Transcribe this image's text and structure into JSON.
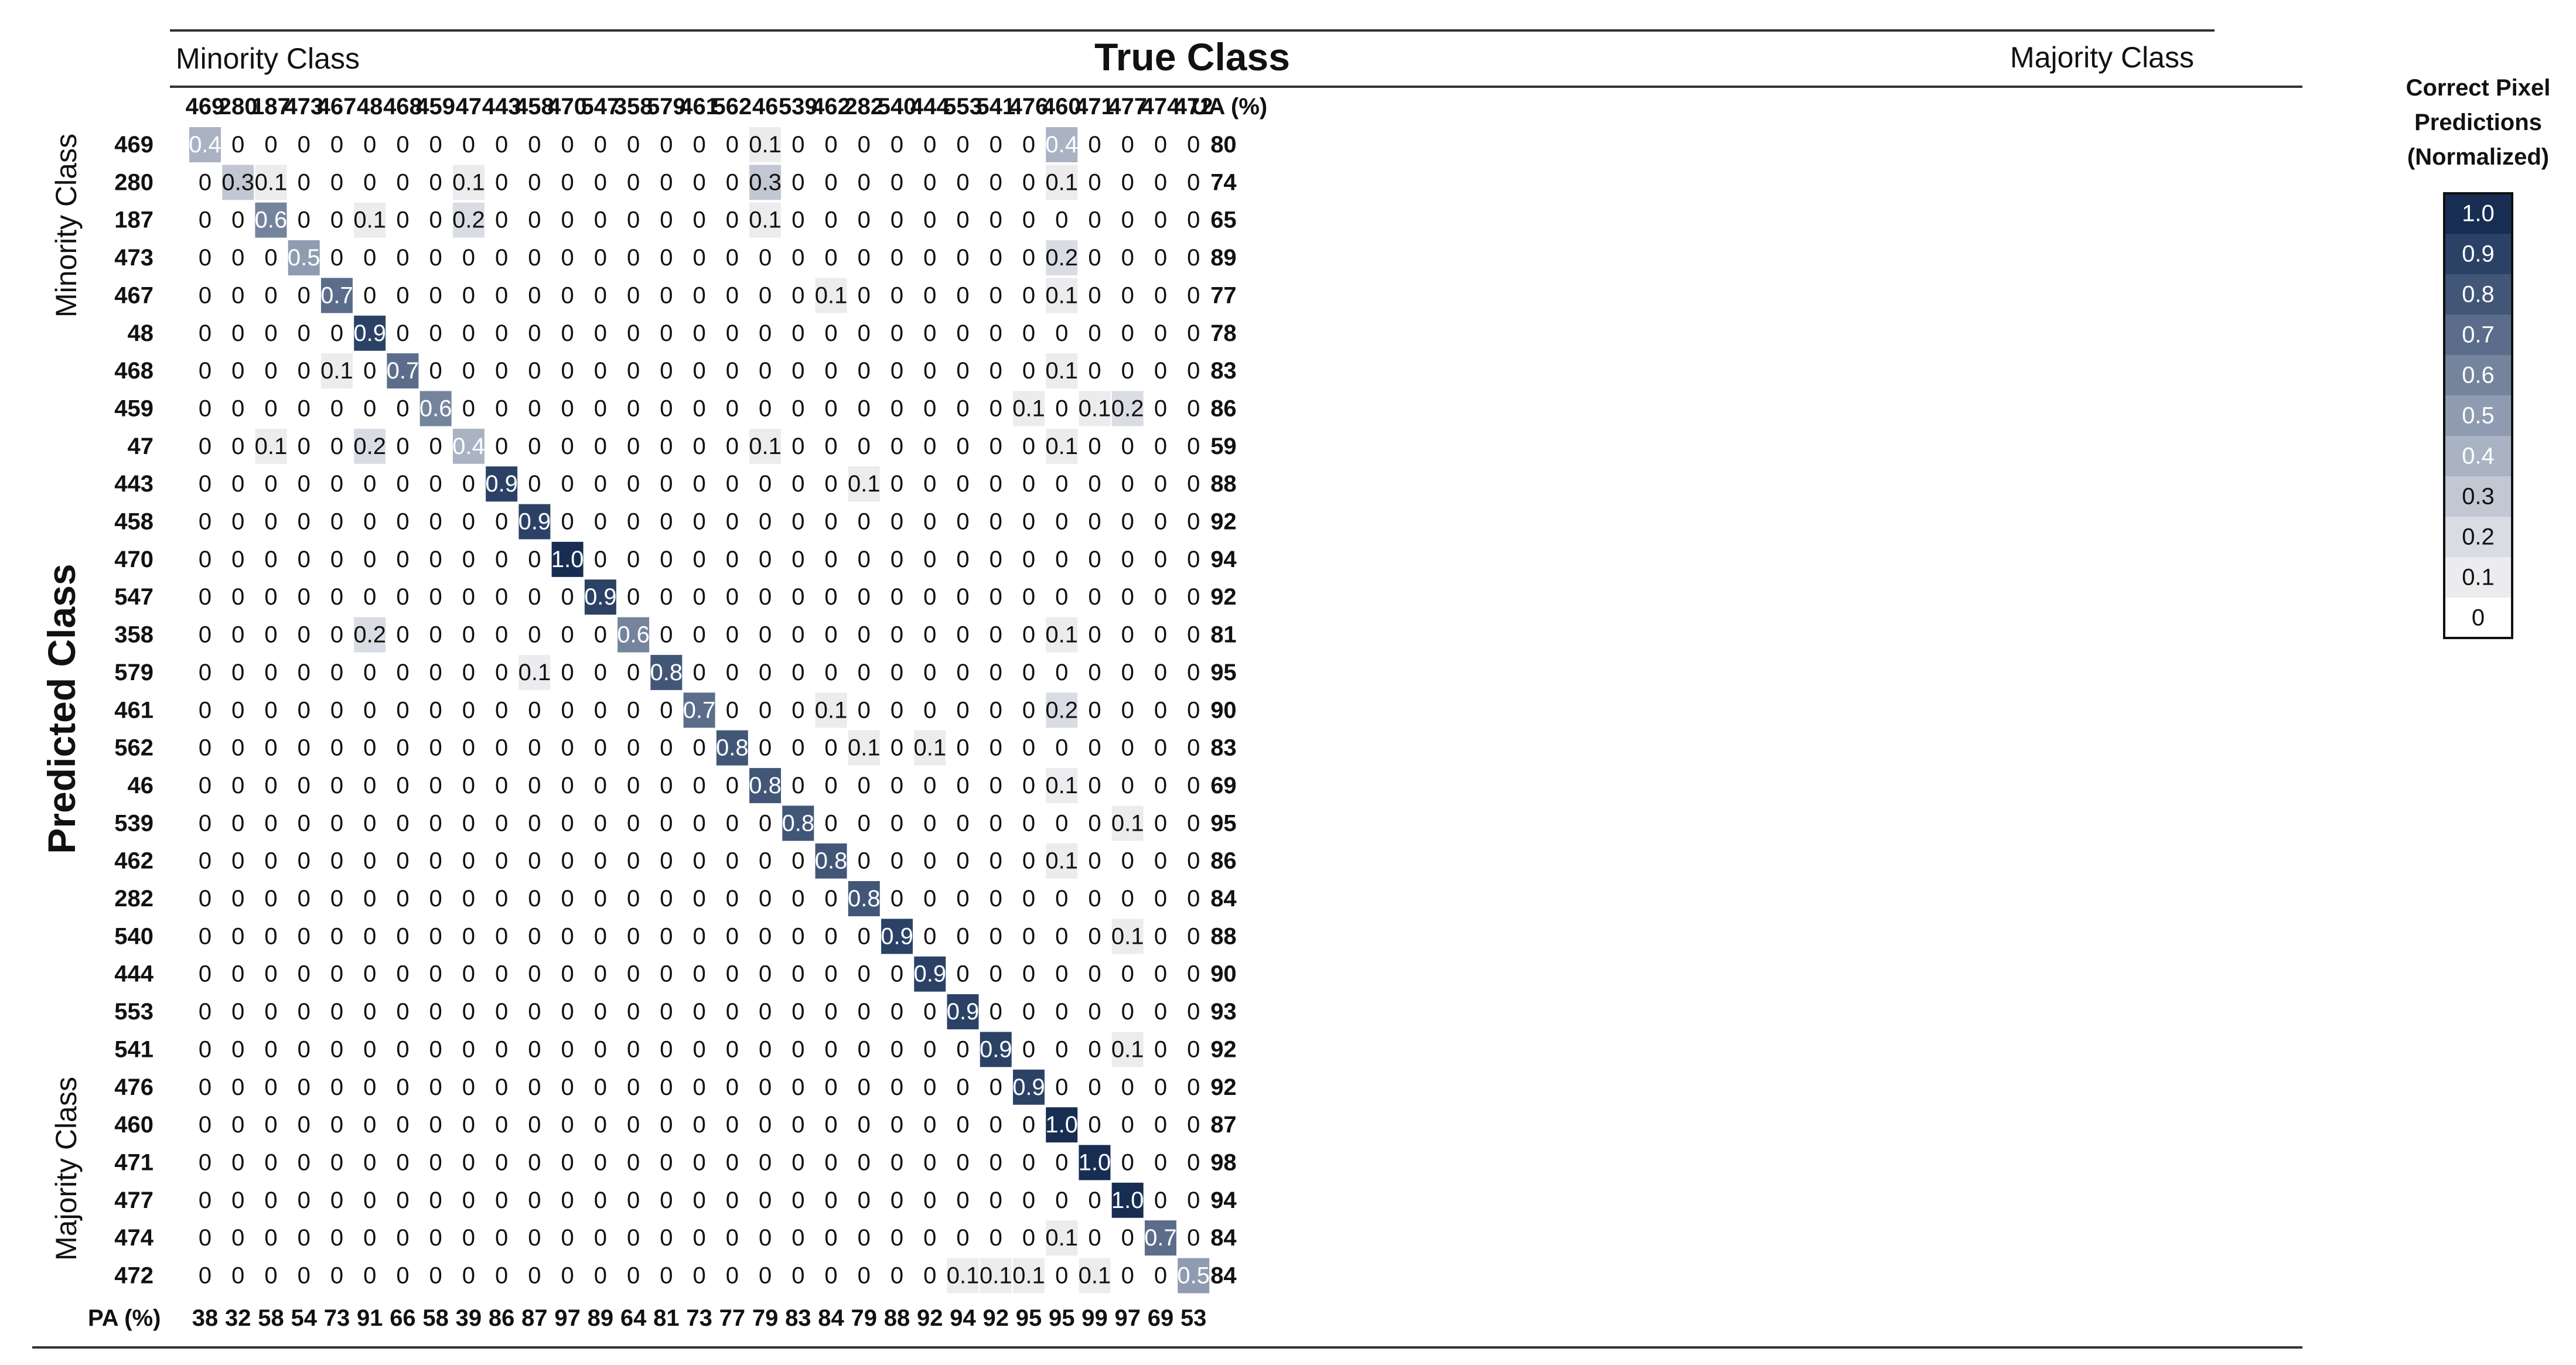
{
  "chart_data": {
    "type": "heatmap",
    "title": "True Class",
    "x_label": "True Class",
    "y_label": "Predicted Class",
    "top_left_note": "Minority Class",
    "top_right_note": "Majority Class",
    "left_top_note": "Minority Class",
    "left_bottom_note": "Majority Class",
    "ua_header": "UA (%)",
    "pa_header": "PA (%)",
    "classes": [
      "469",
      "280",
      "187",
      "473",
      "467",
      "48",
      "468",
      "459",
      "47",
      "443",
      "458",
      "470",
      "547",
      "358",
      "579",
      "461",
      "562",
      "46",
      "539",
      "462",
      "282",
      "540",
      "444",
      "553",
      "541",
      "476",
      "460",
      "471",
      "477",
      "474",
      "472"
    ],
    "cells": [
      [
        "0.4",
        "0",
        "0",
        "0",
        "0",
        "0",
        "0",
        "0",
        "0",
        "0",
        "0",
        "0",
        "0",
        "0",
        "0",
        "0",
        "0",
        "0.1",
        "0",
        "0",
        "0",
        "0",
        "0",
        "0",
        "0",
        "0",
        "0.4",
        "0",
        "0",
        "0",
        "0"
      ],
      [
        "0",
        "0.3",
        "0.1",
        "0",
        "0",
        "0",
        "0",
        "0",
        "0.1",
        "0",
        "0",
        "0",
        "0",
        "0",
        "0",
        "0",
        "0",
        "0.3",
        "0",
        "0",
        "0",
        "0",
        "0",
        "0",
        "0",
        "0",
        "0.1",
        "0",
        "0",
        "0",
        "0"
      ],
      [
        "0",
        "0",
        "0.6",
        "0",
        "0",
        "0.1",
        "0",
        "0",
        "0.2",
        "0",
        "0",
        "0",
        "0",
        "0",
        "0",
        "0",
        "0",
        "0.1",
        "0",
        "0",
        "0",
        "0",
        "0",
        "0",
        "0",
        "0",
        "0",
        "0",
        "0",
        "0",
        "0"
      ],
      [
        "0",
        "0",
        "0",
        "0.5",
        "0",
        "0",
        "0",
        "0",
        "0",
        "0",
        "0",
        "0",
        "0",
        "0",
        "0",
        "0",
        "0",
        "0",
        "0",
        "0",
        "0",
        "0",
        "0",
        "0",
        "0",
        "0",
        "0.2",
        "0",
        "0",
        "0",
        "0"
      ],
      [
        "0",
        "0",
        "0",
        "0",
        "0.7",
        "0",
        "0",
        "0",
        "0",
        "0",
        "0",
        "0",
        "0",
        "0",
        "0",
        "0",
        "0",
        "0",
        "0",
        "0.1",
        "0",
        "0",
        "0",
        "0",
        "0",
        "0",
        "0.1",
        "0",
        "0",
        "0",
        "0"
      ],
      [
        "0",
        "0",
        "0",
        "0",
        "0",
        "0.9",
        "0",
        "0",
        "0",
        "0",
        "0",
        "0",
        "0",
        "0",
        "0",
        "0",
        "0",
        "0",
        "0",
        "0",
        "0",
        "0",
        "0",
        "0",
        "0",
        "0",
        "0",
        "0",
        "0",
        "0",
        "0"
      ],
      [
        "0",
        "0",
        "0",
        "0",
        "0.1",
        "0",
        "0.7",
        "0",
        "0",
        "0",
        "0",
        "0",
        "0",
        "0",
        "0",
        "0",
        "0",
        "0",
        "0",
        "0",
        "0",
        "0",
        "0",
        "0",
        "0",
        "0",
        "0.1",
        "0",
        "0",
        "0",
        "0"
      ],
      [
        "0",
        "0",
        "0",
        "0",
        "0",
        "0",
        "0",
        "0.6",
        "0",
        "0",
        "0",
        "0",
        "0",
        "0",
        "0",
        "0",
        "0",
        "0",
        "0",
        "0",
        "0",
        "0",
        "0",
        "0",
        "0",
        "0.1",
        "0",
        "0.1",
        "0.2",
        "0",
        "0"
      ],
      [
        "0",
        "0",
        "0.1",
        "0",
        "0",
        "0.2",
        "0",
        "0",
        "0.4",
        "0",
        "0",
        "0",
        "0",
        "0",
        "0",
        "0",
        "0",
        "0.1",
        "0",
        "0",
        "0",
        "0",
        "0",
        "0",
        "0",
        "0",
        "0.1",
        "0",
        "0",
        "0",
        "0"
      ],
      [
        "0",
        "0",
        "0",
        "0",
        "0",
        "0",
        "0",
        "0",
        "0",
        "0.9",
        "0",
        "0",
        "0",
        "0",
        "0",
        "0",
        "0",
        "0",
        "0",
        "0",
        "0.1",
        "0",
        "0",
        "0",
        "0",
        "0",
        "0",
        "0",
        "0",
        "0",
        "0"
      ],
      [
        "0",
        "0",
        "0",
        "0",
        "0",
        "0",
        "0",
        "0",
        "0",
        "0",
        "0.9",
        "0",
        "0",
        "0",
        "0",
        "0",
        "0",
        "0",
        "0",
        "0",
        "0",
        "0",
        "0",
        "0",
        "0",
        "0",
        "0",
        "0",
        "0",
        "0",
        "0"
      ],
      [
        "0",
        "0",
        "0",
        "0",
        "0",
        "0",
        "0",
        "0",
        "0",
        "0",
        "0",
        "1.0",
        "0",
        "0",
        "0",
        "0",
        "0",
        "0",
        "0",
        "0",
        "0",
        "0",
        "0",
        "0",
        "0",
        "0",
        "0",
        "0",
        "0",
        "0",
        "0"
      ],
      [
        "0",
        "0",
        "0",
        "0",
        "0",
        "0",
        "0",
        "0",
        "0",
        "0",
        "0",
        "0",
        "0.9",
        "0",
        "0",
        "0",
        "0",
        "0",
        "0",
        "0",
        "0",
        "0",
        "0",
        "0",
        "0",
        "0",
        "0",
        "0",
        "0",
        "0",
        "0"
      ],
      [
        "0",
        "0",
        "0",
        "0",
        "0",
        "0.2",
        "0",
        "0",
        "0",
        "0",
        "0",
        "0",
        "0",
        "0.6",
        "0",
        "0",
        "0",
        "0",
        "0",
        "0",
        "0",
        "0",
        "0",
        "0",
        "0",
        "0",
        "0.1",
        "0",
        "0",
        "0",
        "0"
      ],
      [
        "0",
        "0",
        "0",
        "0",
        "0",
        "0",
        "0",
        "0",
        "0",
        "0",
        "0.1",
        "0",
        "0",
        "0",
        "0.8",
        "0",
        "0",
        "0",
        "0",
        "0",
        "0",
        "0",
        "0",
        "0",
        "0",
        "0",
        "0",
        "0",
        "0",
        "0",
        "0"
      ],
      [
        "0",
        "0",
        "0",
        "0",
        "0",
        "0",
        "0",
        "0",
        "0",
        "0",
        "0",
        "0",
        "0",
        "0",
        "0",
        "0.7",
        "0",
        "0",
        "0",
        "0.1",
        "0",
        "0",
        "0",
        "0",
        "0",
        "0",
        "0.2",
        "0",
        "0",
        "0",
        "0"
      ],
      [
        "0",
        "0",
        "0",
        "0",
        "0",
        "0",
        "0",
        "0",
        "0",
        "0",
        "0",
        "0",
        "0",
        "0",
        "0",
        "0",
        "0.8",
        "0",
        "0",
        "0",
        "0.1",
        "0",
        "0.1",
        "0",
        "0",
        "0",
        "0",
        "0",
        "0",
        "0",
        "0"
      ],
      [
        "0",
        "0",
        "0",
        "0",
        "0",
        "0",
        "0",
        "0",
        "0",
        "0",
        "0",
        "0",
        "0",
        "0",
        "0",
        "0",
        "0",
        "0.8",
        "0",
        "0",
        "0",
        "0",
        "0",
        "0",
        "0",
        "0",
        "0.1",
        "0",
        "0",
        "0",
        "0"
      ],
      [
        "0",
        "0",
        "0",
        "0",
        "0",
        "0",
        "0",
        "0",
        "0",
        "0",
        "0",
        "0",
        "0",
        "0",
        "0",
        "0",
        "0",
        "0",
        "0.8",
        "0",
        "0",
        "0",
        "0",
        "0",
        "0",
        "0",
        "0",
        "0",
        "0.1",
        "0",
        "0"
      ],
      [
        "0",
        "0",
        "0",
        "0",
        "0",
        "0",
        "0",
        "0",
        "0",
        "0",
        "0",
        "0",
        "0",
        "0",
        "0",
        "0",
        "0",
        "0",
        "0",
        "0.8",
        "0",
        "0",
        "0",
        "0",
        "0",
        "0",
        "0.1",
        "0",
        "0",
        "0",
        "0"
      ],
      [
        "0",
        "0",
        "0",
        "0",
        "0",
        "0",
        "0",
        "0",
        "0",
        "0",
        "0",
        "0",
        "0",
        "0",
        "0",
        "0",
        "0",
        "0",
        "0",
        "0",
        "0.8",
        "0",
        "0",
        "0",
        "0",
        "0",
        "0",
        "0",
        "0",
        "0",
        "0"
      ],
      [
        "0",
        "0",
        "0",
        "0",
        "0",
        "0",
        "0",
        "0",
        "0",
        "0",
        "0",
        "0",
        "0",
        "0",
        "0",
        "0",
        "0",
        "0",
        "0",
        "0",
        "0",
        "0.9",
        "0",
        "0",
        "0",
        "0",
        "0",
        "0",
        "0.1",
        "0",
        "0"
      ],
      [
        "0",
        "0",
        "0",
        "0",
        "0",
        "0",
        "0",
        "0",
        "0",
        "0",
        "0",
        "0",
        "0",
        "0",
        "0",
        "0",
        "0",
        "0",
        "0",
        "0",
        "0",
        "0",
        "0.9",
        "0",
        "0",
        "0",
        "0",
        "0",
        "0",
        "0",
        "0"
      ],
      [
        "0",
        "0",
        "0",
        "0",
        "0",
        "0",
        "0",
        "0",
        "0",
        "0",
        "0",
        "0",
        "0",
        "0",
        "0",
        "0",
        "0",
        "0",
        "0",
        "0",
        "0",
        "0",
        "0",
        "0.9",
        "0",
        "0",
        "0",
        "0",
        "0",
        "0",
        "0"
      ],
      [
        "0",
        "0",
        "0",
        "0",
        "0",
        "0",
        "0",
        "0",
        "0",
        "0",
        "0",
        "0",
        "0",
        "0",
        "0",
        "0",
        "0",
        "0",
        "0",
        "0",
        "0",
        "0",
        "0",
        "0",
        "0.9",
        "0",
        "0",
        "0",
        "0.1",
        "0",
        "0"
      ],
      [
        "0",
        "0",
        "0",
        "0",
        "0",
        "0",
        "0",
        "0",
        "0",
        "0",
        "0",
        "0",
        "0",
        "0",
        "0",
        "0",
        "0",
        "0",
        "0",
        "0",
        "0",
        "0",
        "0",
        "0",
        "0",
        "0.9",
        "0",
        "0",
        "0",
        "0",
        "0"
      ],
      [
        "0",
        "0",
        "0",
        "0",
        "0",
        "0",
        "0",
        "0",
        "0",
        "0",
        "0",
        "0",
        "0",
        "0",
        "0",
        "0",
        "0",
        "0",
        "0",
        "0",
        "0",
        "0",
        "0",
        "0",
        "0",
        "0",
        "1.0",
        "0",
        "0",
        "0",
        "0"
      ],
      [
        "0",
        "0",
        "0",
        "0",
        "0",
        "0",
        "0",
        "0",
        "0",
        "0",
        "0",
        "0",
        "0",
        "0",
        "0",
        "0",
        "0",
        "0",
        "0",
        "0",
        "0",
        "0",
        "0",
        "0",
        "0",
        "0",
        "0",
        "1.0",
        "0",
        "0",
        "0"
      ],
      [
        "0",
        "0",
        "0",
        "0",
        "0",
        "0",
        "0",
        "0",
        "0",
        "0",
        "0",
        "0",
        "0",
        "0",
        "0",
        "0",
        "0",
        "0",
        "0",
        "0",
        "0",
        "0",
        "0",
        "0",
        "0",
        "0",
        "0",
        "0",
        "1.0",
        "0",
        "0"
      ],
      [
        "0",
        "0",
        "0",
        "0",
        "0",
        "0",
        "0",
        "0",
        "0",
        "0",
        "0",
        "0",
        "0",
        "0",
        "0",
        "0",
        "0",
        "0",
        "0",
        "0",
        "0",
        "0",
        "0",
        "0",
        "0",
        "0",
        "0.1",
        "0",
        "0",
        "0.7",
        "0"
      ],
      [
        "0",
        "0",
        "0",
        "0",
        "0",
        "0",
        "0",
        "0",
        "0",
        "0",
        "0",
        "0",
        "0",
        "0",
        "0",
        "0",
        "0",
        "0",
        "0",
        "0",
        "0",
        "0",
        "0",
        "0.1",
        "0.1",
        "0.1",
        "0",
        "0.1",
        "0",
        "0",
        "0.5"
      ]
    ],
    "ua": [
      "80",
      "74",
      "65",
      "89",
      "77",
      "78",
      "83",
      "86",
      "59",
      "88",
      "92",
      "94",
      "92",
      "81",
      "95",
      "90",
      "83",
      "69",
      "95",
      "86",
      "84",
      "88",
      "90",
      "93",
      "92",
      "92",
      "87",
      "98",
      "94",
      "84",
      "84"
    ],
    "pa": [
      "38",
      "32",
      "58",
      "54",
      "73",
      "91",
      "66",
      "58",
      "39",
      "86",
      "87",
      "97",
      "89",
      "64",
      "81",
      "73",
      "77",
      "79",
      "83",
      "84",
      "79",
      "88",
      "92",
      "94",
      "92",
      "95",
      "95",
      "99",
      "97",
      "69",
      "53"
    ],
    "legend": {
      "title_lines": [
        "Correct Pixel",
        "Predictions",
        "(Normalized)"
      ],
      "levels": [
        "1.0",
        "0.9",
        "0.8",
        "0.7",
        "0.6",
        "0.5",
        "0.4",
        "0.3",
        "0.2",
        "0.1",
        "0"
      ]
    },
    "colors": {
      "0": "#ffffff",
      "0.1": "#ececee",
      "0.2": "#d9dce3",
      "0.3": "#c2c8d3",
      "0.4": "#a9b3c3",
      "0.5": "#8f9bb0",
      "0.6": "#75849d",
      "0.7": "#5b6d8a",
      "0.8": "#425678",
      "0.9": "#2b4266",
      "1.0": "#172e52"
    }
  }
}
